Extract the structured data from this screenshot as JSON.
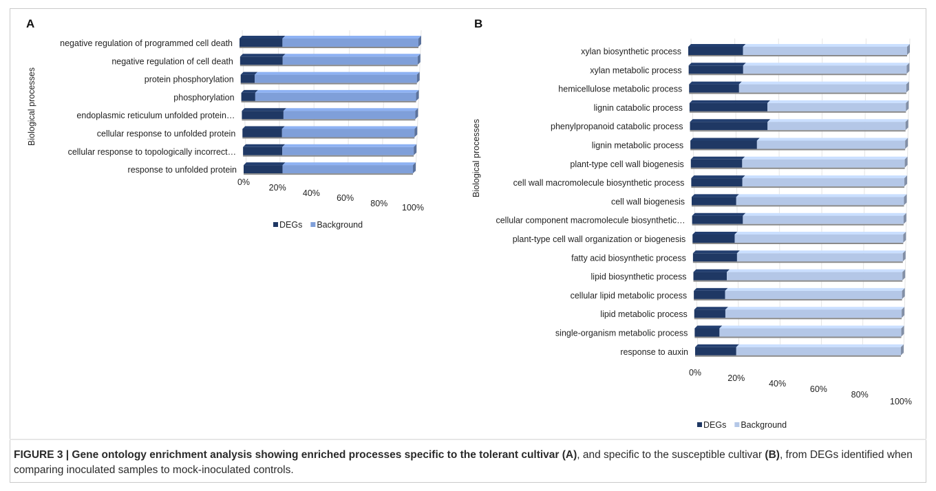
{
  "chart_data": [
    {
      "type": "bar",
      "stacked": "100%",
      "orientation": "horizontal",
      "panel": "A",
      "ylabel": "Biological processes",
      "xticks": [
        "0%",
        "20%",
        "40%",
        "60%",
        "80%",
        "100%"
      ],
      "categories": [
        "negative regulation of programmed cell death",
        "negative regulation of cell death",
        "protein phosphorylation",
        "phosphorylation",
        "endoplasmic reticulum unfolded protein…",
        "cellular response to unfolded protein",
        "cellular response to topologically incorrect…",
        "response to unfolded protein"
      ],
      "series": [
        {
          "name": "DEGs",
          "color": "#1f3864",
          "values": [
            24,
            24,
            8,
            8,
            24,
            23,
            23,
            23
          ]
        },
        {
          "name": "Background",
          "color": "#7f9fd9",
          "values": [
            76,
            76,
            92,
            92,
            76,
            77,
            77,
            77
          ]
        }
      ],
      "legend": "bottom"
    },
    {
      "type": "bar",
      "stacked": "100%",
      "orientation": "horizontal",
      "panel": "B",
      "ylabel": "Biological processes",
      "xticks": [
        "0%",
        "20%",
        "40%",
        "60%",
        "80%",
        "100%"
      ],
      "categories": [
        "xylan biosynthetic process",
        "xylan metabolic process",
        "hemicellulose metabolic process",
        "lignin catabolic process",
        "phenylpropanoid catabolic process",
        "lignin metabolic process",
        "plant-type cell wall biogenesis",
        "cell wall macromolecule biosynthetic process",
        "cell wall biogenesis",
        "cellular component macromolecule biosynthetic…",
        "plant-type cell wall organization or biogenesis",
        "fatty acid biosynthetic process",
        "lipid biosynthetic process",
        "cellular lipid metabolic process",
        "lipid metabolic process",
        "single-organism metabolic process",
        "response to auxin"
      ],
      "series": [
        {
          "name": "DEGs",
          "color": "#1f3864",
          "values": [
            25,
            25,
            23,
            36,
            36,
            31,
            24,
            24,
            21,
            24,
            20,
            21,
            16,
            15,
            15,
            12,
            20
          ]
        },
        {
          "name": "Background",
          "color": "#b4c7e7",
          "values": [
            75,
            75,
            77,
            64,
            64,
            69,
            76,
            76,
            79,
            76,
            80,
            79,
            84,
            85,
            85,
            88,
            80
          ]
        }
      ],
      "legend": "bottom"
    }
  ],
  "caption": {
    "lead": "FIGURE 3 | Gene ontology enrichment analysis showing enriched processes specific to the tolerant cultivar (A)",
    "mid": ", and specific to the susceptible cultivar ",
    "b_ref": "(B)",
    "tail": ", from DEGs identified when comparing inoculated samples to mock-inoculated controls."
  }
}
